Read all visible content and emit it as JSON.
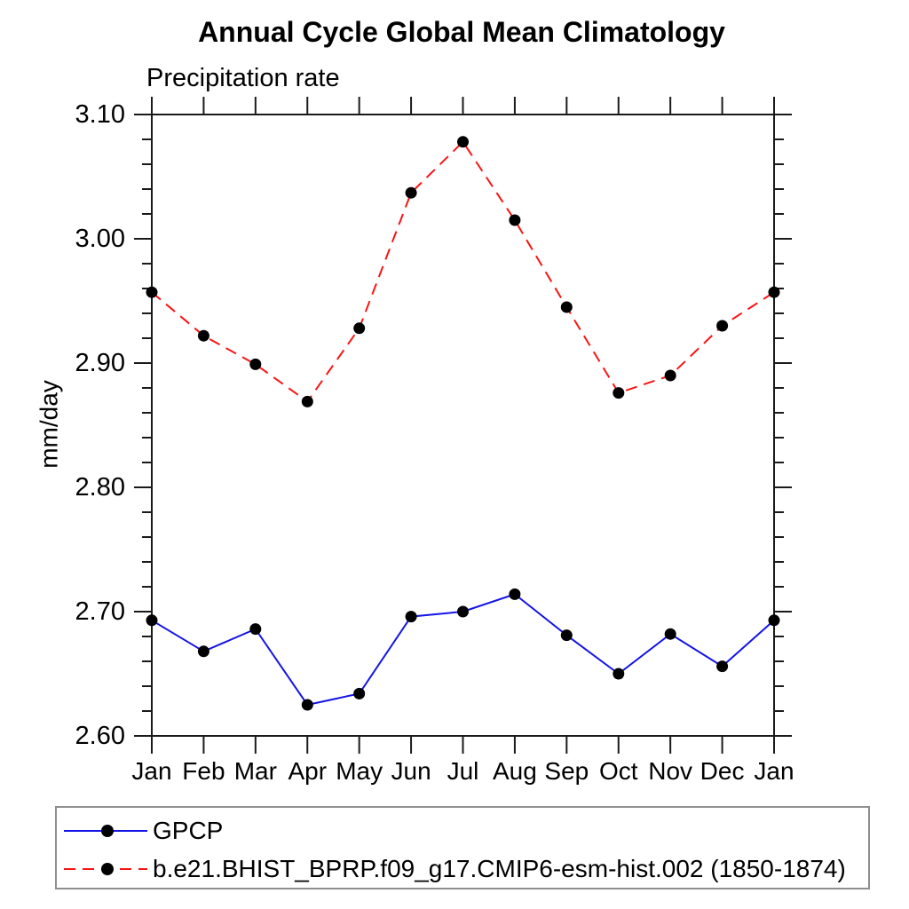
{
  "title": "Annual Cycle Global Mean Climatology",
  "subtitle": "Precipitation rate",
  "chart_data": {
    "type": "line",
    "title": "Annual Cycle Global Mean Climatology",
    "subtitle": "Precipitation rate",
    "xlabel": "",
    "ylabel": "mm/day",
    "x_labels": [
      "Jan",
      "Feb",
      "Mar",
      "Apr",
      "May",
      "Jun",
      "Jul",
      "Aug",
      "Sep",
      "Oct",
      "Nov",
      "Dec",
      "Jan"
    ],
    "ylim": [
      2.6,
      3.1
    ],
    "ytick_step": 0.1,
    "yminor_step": 0.02,
    "ytick_labels": [
      "3.10",
      "3.00",
      "2.90",
      "2.80",
      "2.70",
      "2.60"
    ],
    "grid": false,
    "legend_position": "bottom-left-box",
    "axis_color": "#1a1a1a",
    "marker_color": "#000000",
    "series": [
      {
        "name": "GPCP",
        "color": "#1414e6",
        "style": "solid",
        "marker": "circle",
        "values": [
          2.693,
          2.668,
          2.686,
          2.625,
          2.634,
          2.696,
          2.7,
          2.714,
          2.681,
          2.65,
          2.682,
          2.656,
          2.693
        ]
      },
      {
        "name": "b.e21.BHIST_BPRP.f09_g17.CMIP6-esm-hist.002 (1850-1874)",
        "color": "#fa1414",
        "style": "dashed",
        "marker": "circle",
        "values": [
          2.957,
          2.922,
          2.899,
          2.869,
          2.928,
          3.037,
          3.078,
          3.015,
          2.945,
          2.876,
          2.89,
          2.93,
          2.957
        ]
      }
    ]
  }
}
